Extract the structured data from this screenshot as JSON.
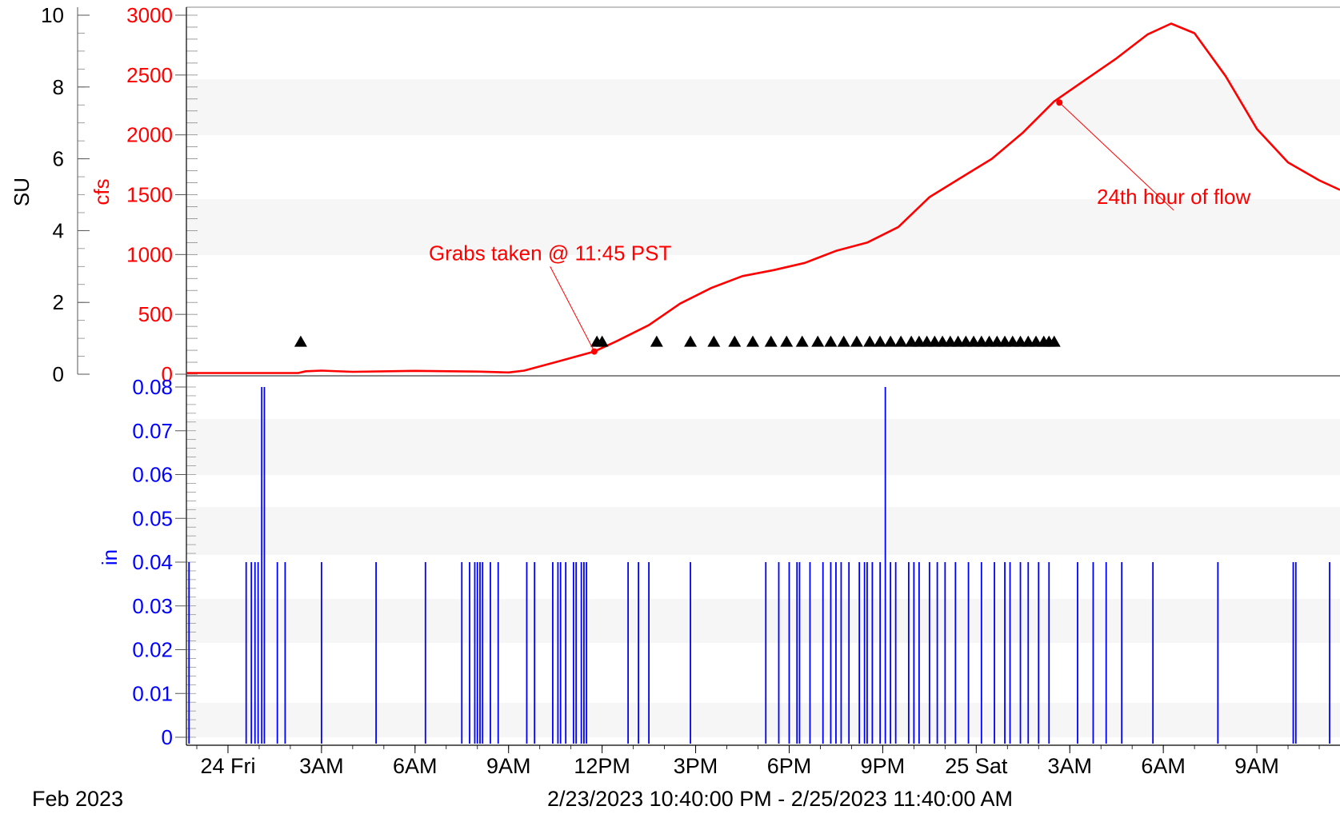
{
  "chart_data": {
    "type": "line",
    "x_range": [
      "2023-02-23T22:40:00",
      "2023-02-25T11:40:00"
    ],
    "x_ticks": [
      {
        "label": "24 Fri",
        "t": "2023-02-24T00:00"
      },
      {
        "label": "3AM",
        "t": "2023-02-24T03:00"
      },
      {
        "label": "6AM",
        "t": "2023-02-24T06:00"
      },
      {
        "label": "9AM",
        "t": "2023-02-24T09:00"
      },
      {
        "label": "12PM",
        "t": "2023-02-24T12:00"
      },
      {
        "label": "3PM",
        "t": "2023-02-24T15:00"
      },
      {
        "label": "6PM",
        "t": "2023-02-24T18:00"
      },
      {
        "label": "9PM",
        "t": "2023-02-24T21:00"
      },
      {
        "label": "25 Sat",
        "t": "2023-02-25T00:00"
      },
      {
        "label": "3AM",
        "t": "2023-02-25T03:00"
      },
      {
        "label": "6AM",
        "t": "2023-02-25T06:00"
      },
      {
        "label": "9AM",
        "t": "2023-02-25T09:00"
      }
    ],
    "footer": {
      "month": "Feb 2023",
      "range": "2/23/2023 10:40:00 PM - 2/25/2023 11:40:00 AM"
    },
    "upper_panel": {
      "left_axis": {
        "label": "SU",
        "ylim": [
          0,
          10
        ],
        "ticks": [
          "0",
          "2",
          "4",
          "6",
          "8",
          "10"
        ],
        "color": "#000000"
      },
      "right_axis": {
        "label": "cfs",
        "ylim": [
          0,
          3000
        ],
        "ticks": [
          "0",
          "500",
          "1000",
          "1500",
          "2000",
          "2500",
          "3000"
        ],
        "color": "#ff0000"
      },
      "flow_series": {
        "axis": "cfs",
        "color": "#ff0000",
        "points": [
          [
            "2023-02-23T22:40",
            10
          ],
          [
            "2023-02-24T02:15",
            10
          ],
          [
            "2023-02-24T02:30",
            25
          ],
          [
            "2023-02-24T03:00",
            30
          ],
          [
            "2023-02-24T04:00",
            20
          ],
          [
            "2023-02-24T06:00",
            28
          ],
          [
            "2023-02-24T08:00",
            22
          ],
          [
            "2023-02-24T09:00",
            15
          ],
          [
            "2023-02-24T09:30",
            30
          ],
          [
            "2023-02-24T10:30",
            100
          ],
          [
            "2023-02-24T11:45",
            190
          ],
          [
            "2023-02-24T12:30",
            280
          ],
          [
            "2023-02-24T13:30",
            410
          ],
          [
            "2023-02-24T14:30",
            590
          ],
          [
            "2023-02-24T15:30",
            720
          ],
          [
            "2023-02-24T16:30",
            820
          ],
          [
            "2023-02-24T17:30",
            870
          ],
          [
            "2023-02-24T18:30",
            930
          ],
          [
            "2023-02-24T19:30",
            1030
          ],
          [
            "2023-02-24T20:30",
            1100
          ],
          [
            "2023-02-24T21:30",
            1230
          ],
          [
            "2023-02-24T22:30",
            1480
          ],
          [
            "2023-02-24T23:30",
            1640
          ],
          [
            "2023-02-25T00:30",
            1800
          ],
          [
            "2023-02-25T01:30",
            2020
          ],
          [
            "2023-02-25T02:30",
            2280
          ],
          [
            "2023-02-25T03:30",
            2460
          ],
          [
            "2023-02-25T04:30",
            2640
          ],
          [
            "2023-02-25T05:30",
            2840
          ],
          [
            "2023-02-25T06:15",
            2930
          ],
          [
            "2023-02-25T07:00",
            2850
          ],
          [
            "2023-02-25T08:00",
            2490
          ],
          [
            "2023-02-25T09:00",
            2050
          ],
          [
            "2023-02-25T10:00",
            1770
          ],
          [
            "2023-02-25T11:00",
            1620
          ],
          [
            "2023-02-25T11:40",
            1540
          ]
        ]
      },
      "sample_markers": {
        "axis": "SU",
        "color": "#000000",
        "value": 0.9,
        "times": [
          "2023-02-24T02:20",
          "2023-02-24T11:50",
          "2023-02-24T12:00",
          "2023-02-24T13:45",
          "2023-02-24T14:50",
          "2023-02-24T15:35",
          "2023-02-24T16:15",
          "2023-02-24T16:50",
          "2023-02-24T17:25",
          "2023-02-24T17:55",
          "2023-02-24T18:25",
          "2023-02-24T18:55",
          "2023-02-24T19:20",
          "2023-02-24T19:45",
          "2023-02-24T20:10",
          "2023-02-24T20:35",
          "2023-02-24T20:55",
          "2023-02-24T21:15",
          "2023-02-24T21:35",
          "2023-02-24T21:55",
          "2023-02-24T22:10",
          "2023-02-24T22:25",
          "2023-02-24T22:40",
          "2023-02-24T22:55",
          "2023-02-24T23:10",
          "2023-02-24T23:25",
          "2023-02-24T23:40",
          "2023-02-24T23:55",
          "2023-02-25T00:10",
          "2023-02-25T00:25",
          "2023-02-25T00:40",
          "2023-02-25T00:55",
          "2023-02-25T01:10",
          "2023-02-25T01:25",
          "2023-02-25T01:40",
          "2023-02-25T01:55",
          "2023-02-25T02:10",
          "2023-02-25T02:20",
          "2023-02-25T02:30"
        ]
      },
      "annotations": [
        {
          "text": "Grabs taken @ 11:45 PST",
          "point": [
            "2023-02-24T11:45",
            190
          ],
          "label_anchor": [
            "2023-02-24T10:20",
            860
          ],
          "color": "#ff0000"
        },
        {
          "text": "24th hour of flow",
          "point": [
            "2023-02-25T02:40",
            2270
          ],
          "label_anchor": [
            "2023-02-25T06:20",
            1330
          ],
          "color": "#ff0000"
        }
      ]
    },
    "lower_panel": {
      "axis": {
        "label": "in",
        "ylim": [
          0,
          0.08
        ],
        "ticks": [
          "0",
          "0.01",
          "0.02",
          "0.03",
          "0.04",
          "0.05",
          "0.06",
          "0.07",
          "0.08"
        ],
        "color": "#0000ff"
      },
      "rain_series": {
        "type": "bar",
        "color": "#0000ff",
        "points": [
          [
            "2023-02-23T22:45",
            0.04
          ],
          [
            "2023-02-24T00:35",
            0.04
          ],
          [
            "2023-02-24T00:45",
            0.04
          ],
          [
            "2023-02-24T00:52",
            0.04
          ],
          [
            "2023-02-24T00:58",
            0.04
          ],
          [
            "2023-02-24T01:05",
            0.08
          ],
          [
            "2023-02-24T01:10",
            0.08
          ],
          [
            "2023-02-24T01:35",
            0.04
          ],
          [
            "2023-02-24T01:50",
            0.04
          ],
          [
            "2023-02-24T03:00",
            0.04
          ],
          [
            "2023-02-24T04:45",
            0.04
          ],
          [
            "2023-02-24T06:20",
            0.04
          ],
          [
            "2023-02-24T07:30",
            0.04
          ],
          [
            "2023-02-24T07:45",
            0.04
          ],
          [
            "2023-02-24T07:55",
            0.04
          ],
          [
            "2023-02-24T08:00",
            0.04
          ],
          [
            "2023-02-24T08:05",
            0.04
          ],
          [
            "2023-02-24T08:10",
            0.04
          ],
          [
            "2023-02-24T08:25",
            0.04
          ],
          [
            "2023-02-24T08:40",
            0.04
          ],
          [
            "2023-02-24T09:35",
            0.04
          ],
          [
            "2023-02-24T09:50",
            0.04
          ],
          [
            "2023-02-24T10:25",
            0.04
          ],
          [
            "2023-02-24T10:35",
            0.04
          ],
          [
            "2023-02-24T10:40",
            0.04
          ],
          [
            "2023-02-24T10:50",
            0.04
          ],
          [
            "2023-02-24T11:05",
            0.04
          ],
          [
            "2023-02-24T11:10",
            0.04
          ],
          [
            "2023-02-24T11:20",
            0.04
          ],
          [
            "2023-02-24T11:25",
            0.04
          ],
          [
            "2023-02-24T11:30",
            0.04
          ],
          [
            "2023-02-24T12:50",
            0.04
          ],
          [
            "2023-02-24T13:10",
            0.04
          ],
          [
            "2023-02-24T13:30",
            0.04
          ],
          [
            "2023-02-24T14:50",
            0.04
          ],
          [
            "2023-02-24T17:15",
            0.04
          ],
          [
            "2023-02-24T17:40",
            0.04
          ],
          [
            "2023-02-24T18:00",
            0.04
          ],
          [
            "2023-02-24T18:15",
            0.04
          ],
          [
            "2023-02-24T18:20",
            0.04
          ],
          [
            "2023-02-24T18:40",
            0.04
          ],
          [
            "2023-02-24T19:05",
            0.04
          ],
          [
            "2023-02-24T19:20",
            0.04
          ],
          [
            "2023-02-24T19:30",
            0.04
          ],
          [
            "2023-02-24T19:40",
            0.04
          ],
          [
            "2023-02-24T19:55",
            0.04
          ],
          [
            "2023-02-24T20:15",
            0.04
          ],
          [
            "2023-02-24T20:25",
            0.04
          ],
          [
            "2023-02-24T20:30",
            0.04
          ],
          [
            "2023-02-24T20:40",
            0.04
          ],
          [
            "2023-02-24T20:55",
            0.04
          ],
          [
            "2023-02-24T21:05",
            0.08
          ],
          [
            "2023-02-24T21:15",
            0.04
          ],
          [
            "2023-02-24T21:25",
            0.04
          ],
          [
            "2023-02-24T21:50",
            0.04
          ],
          [
            "2023-02-24T22:00",
            0.04
          ],
          [
            "2023-02-24T22:10",
            0.04
          ],
          [
            "2023-02-24T22:30",
            0.04
          ],
          [
            "2023-02-24T22:45",
            0.04
          ],
          [
            "2023-02-24T23:00",
            0.04
          ],
          [
            "2023-02-24T23:20",
            0.04
          ],
          [
            "2023-02-24T23:45",
            0.04
          ],
          [
            "2023-02-25T00:10",
            0.04
          ],
          [
            "2023-02-25T00:35",
            0.04
          ],
          [
            "2023-02-25T00:55",
            0.04
          ],
          [
            "2023-02-25T01:05",
            0.04
          ],
          [
            "2023-02-25T01:25",
            0.04
          ],
          [
            "2023-02-25T01:40",
            0.04
          ],
          [
            "2023-02-25T02:00",
            0.04
          ],
          [
            "2023-02-25T02:20",
            0.04
          ],
          [
            "2023-02-25T03:15",
            0.04
          ],
          [
            "2023-02-25T03:45",
            0.04
          ],
          [
            "2023-02-25T04:10",
            0.04
          ],
          [
            "2023-02-25T04:40",
            0.04
          ],
          [
            "2023-02-25T05:40",
            0.04
          ],
          [
            "2023-02-25T07:45",
            0.04
          ],
          [
            "2023-02-25T10:10",
            0.04
          ],
          [
            "2023-02-25T10:15",
            0.04
          ],
          [
            "2023-02-25T11:20",
            0.04
          ]
        ]
      }
    }
  }
}
